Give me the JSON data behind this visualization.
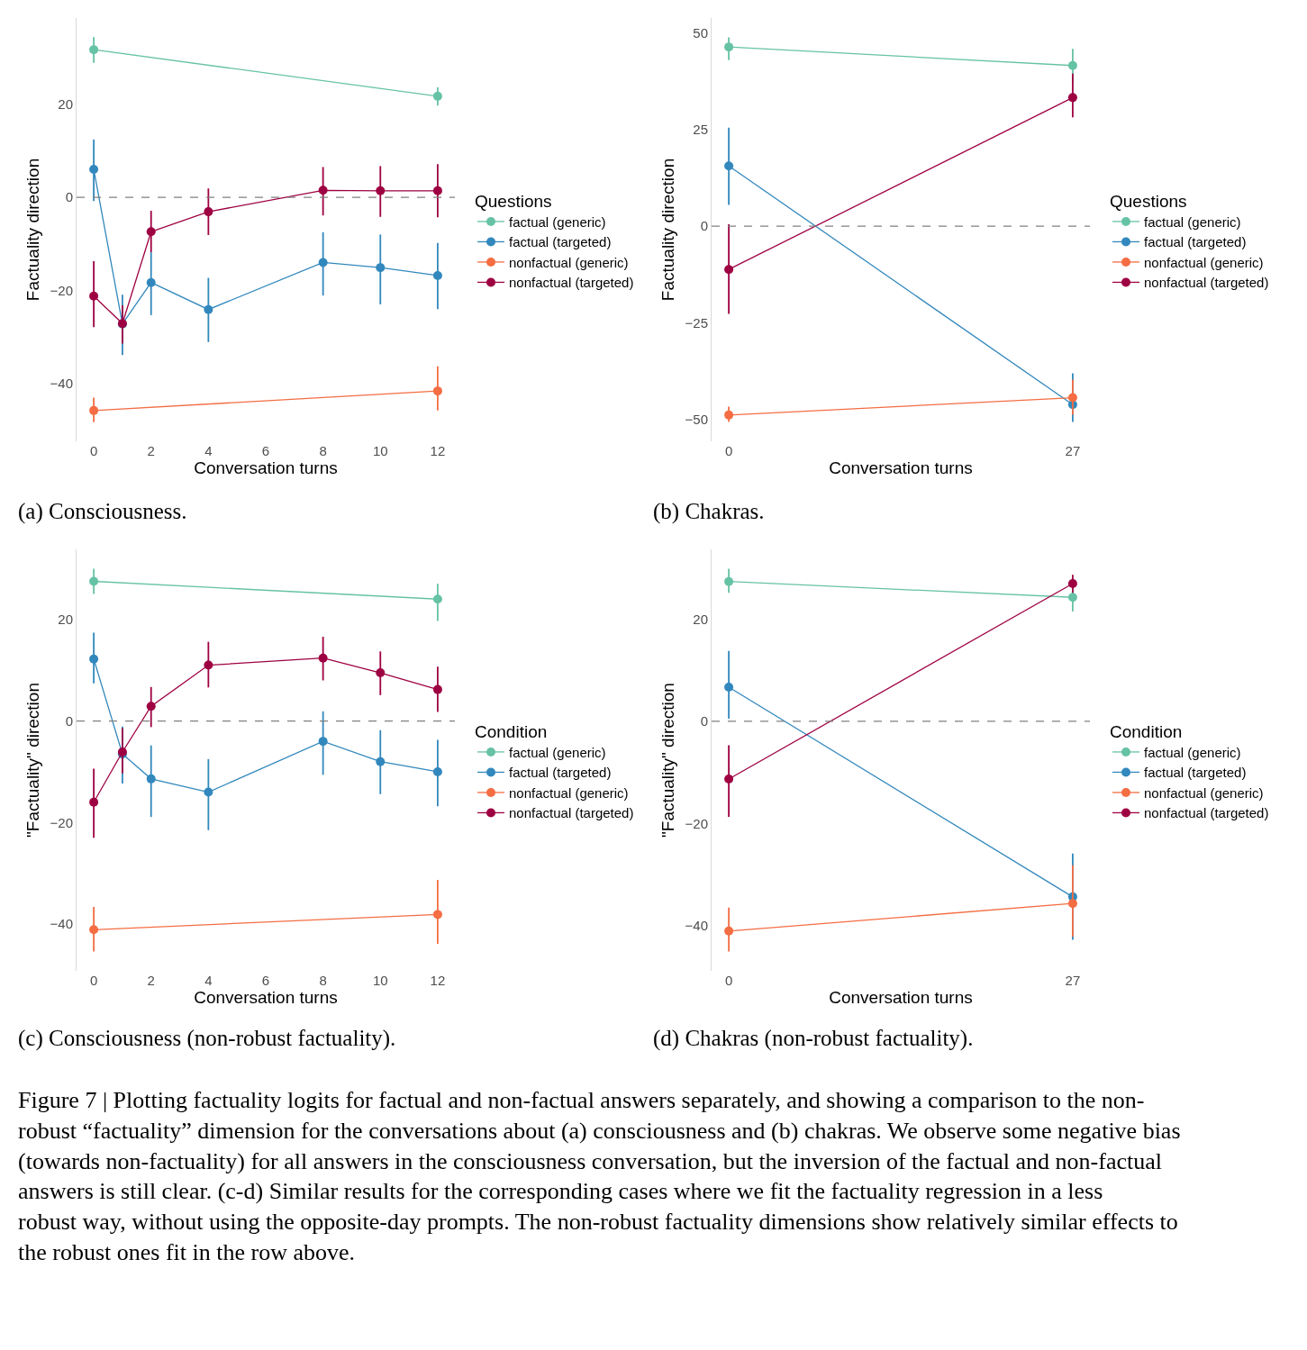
{
  "chart_data": [
    {
      "type": "line",
      "title": "(a) Consciousness.",
      "xlabel": "Conversation turns",
      "ylabel": "Factuality direction",
      "legend_title": "Questions",
      "legend": "right",
      "marker": "circle",
      "line_style": "solid",
      "xlim": [
        -0.6,
        12.6
      ],
      "xticks": [
        0,
        2,
        4,
        6,
        8,
        10,
        12
      ],
      "ylim": [
        -52.4,
        38.5
      ],
      "yticks": [
        -40,
        -20,
        0,
        20
      ],
      "ref_lines": [
        {
          "axis": "y",
          "value": 0,
          "label": null,
          "color": "#808080",
          "line_style": "dashed"
        }
      ],
      "series": [
        {
          "name": "factual (generic)",
          "color": "#66c2a5",
          "x": [
            0,
            12
          ],
          "values": [
            31.7,
            21.7
          ],
          "errors": [
            [
              28.9,
              34.4
            ],
            [
              19.7,
              23.6
            ]
          ]
        },
        {
          "name": "factual (targeted)",
          "color": "#3288bd",
          "x": [
            0,
            1,
            2,
            4,
            8,
            10,
            12
          ],
          "values": [
            6.0,
            -27.2,
            -18.3,
            -24.1,
            -14.0,
            -15.1,
            -16.8
          ],
          "errors": [
            [
              -0.8,
              12.4
            ],
            [
              -33.9,
              -20.9
            ],
            [
              -25.3,
              -11.8
            ],
            [
              -31.1,
              -17.3
            ],
            [
              -21.1,
              -7.5
            ],
            [
              -23.0,
              -8.0
            ],
            [
              -24.0,
              -9.8
            ]
          ]
        },
        {
          "name": "nonfactual (generic)",
          "color": "#f46d43",
          "x": [
            0,
            12
          ],
          "values": [
            -45.8,
            -41.6
          ],
          "errors": [
            [
              -48.3,
              -43.0
            ],
            [
              -45.8,
              -36.3
            ]
          ]
        },
        {
          "name": "nonfactual (targeted)",
          "color": "#9e0142",
          "x": [
            0,
            1,
            2,
            4,
            8,
            10,
            12
          ],
          "values": [
            -21.2,
            -27.1,
            -7.4,
            -3.1,
            1.5,
            1.4,
            1.4
          ],
          "errors": [
            [
              -27.9,
              -13.7
            ],
            [
              -31.4,
              -23.2
            ],
            [
              -11.8,
              -2.9
            ],
            [
              -8.1,
              1.9
            ],
            [
              -3.9,
              6.5
            ],
            [
              -4.2,
              6.7
            ],
            [
              -4.3,
              7.1
            ]
          ]
        }
      ]
    },
    {
      "type": "line",
      "title": "(b) Chakras.",
      "xlabel": "Conversation turns",
      "ylabel": "Factuality direction",
      "legend_title": "Questions",
      "legend": "right",
      "marker": "circle",
      "line_style": "solid",
      "xlim": [
        -1.35,
        28.35
      ],
      "xticks": [
        0,
        27
      ],
      "ylim": [
        -55.7,
        53.9
      ],
      "yticks": [
        -50,
        -25,
        0,
        25,
        50
      ],
      "ref_lines": [
        {
          "axis": "y",
          "value": 0,
          "label": null,
          "color": "#808080",
          "line_style": "dashed"
        }
      ],
      "series": [
        {
          "name": "factual (generic)",
          "color": "#66c2a5",
          "x": [
            0,
            27
          ],
          "values": [
            46.4,
            41.6
          ],
          "errors": [
            [
              43.0,
              48.9
            ],
            [
              37.2,
              45.9
            ]
          ]
        },
        {
          "name": "factual (targeted)",
          "color": "#3288bd",
          "x": [
            0,
            27
          ],
          "values": [
            15.6,
            -46.2
          ],
          "errors": [
            [
              5.5,
              25.5
            ],
            [
              -50.7,
              -38.1
            ]
          ]
        },
        {
          "name": "nonfactual (generic)",
          "color": "#f46d43",
          "x": [
            0,
            27
          ],
          "values": [
            -48.9,
            -44.4
          ],
          "errors": [
            [
              -50.7,
              -46.7
            ],
            [
              -48.8,
              -39.7
            ]
          ]
        },
        {
          "name": "nonfactual (targeted)",
          "color": "#9e0142",
          "x": [
            0,
            27
          ],
          "values": [
            -11.2,
            33.3
          ],
          "errors": [
            [
              -22.7,
              0.5
            ],
            [
              28.2,
              39.5
            ]
          ]
        }
      ]
    },
    {
      "type": "line",
      "title": "(c) Consciousness (non-robust factuality).",
      "xlabel": "Conversation turns",
      "ylabel": "\"Factuality\" direction",
      "legend_title": "Condition",
      "legend": "right",
      "marker": "circle",
      "line_style": "solid",
      "xlim": [
        -0.6,
        12.6
      ],
      "xticks": [
        0,
        2,
        4,
        6,
        8,
        10,
        12
      ],
      "ylim": [
        -49.2,
        33.8
      ],
      "yticks": [
        -40,
        -20,
        0,
        20
      ],
      "ref_lines": [
        {
          "axis": "y",
          "value": 0,
          "label": null,
          "color": "#808080",
          "line_style": "dashed"
        }
      ],
      "series": [
        {
          "name": "factual (generic)",
          "color": "#66c2a5",
          "x": [
            0,
            12
          ],
          "values": [
            27.5,
            24.0
          ],
          "errors": [
            [
              25.0,
              30.0
            ],
            [
              19.7,
              27.0
            ]
          ]
        },
        {
          "name": "factual (targeted)",
          "color": "#3288bd",
          "x": [
            0,
            1,
            2,
            4,
            8,
            10,
            12
          ],
          "values": [
            12.2,
            -6.5,
            -11.4,
            -14.0,
            -4.0,
            -8.0,
            -10.0
          ],
          "errors": [
            [
              7.4,
              17.4
            ],
            [
              -12.3,
              -1.1
            ],
            [
              -18.9,
              -4.8
            ],
            [
              -21.5,
              -7.5
            ],
            [
              -10.6,
              1.9
            ],
            [
              -14.4,
              -1.8
            ],
            [
              -16.8,
              -3.7
            ]
          ]
        },
        {
          "name": "nonfactual (generic)",
          "color": "#f46d43",
          "x": [
            0,
            12
          ],
          "values": [
            -41.1,
            -38.1
          ],
          "errors": [
            [
              -45.4,
              -36.6
            ],
            [
              -43.9,
              -31.3
            ]
          ]
        },
        {
          "name": "nonfactual (targeted)",
          "color": "#9e0142",
          "x": [
            0,
            1,
            2,
            4,
            8,
            10,
            12
          ],
          "values": [
            -16.0,
            -6.1,
            2.9,
            11.0,
            12.4,
            9.5,
            6.2
          ],
          "errors": [
            [
              -23.0,
              -9.4
            ],
            [
              -10.3,
              -1.4
            ],
            [
              -1.2,
              6.7
            ],
            [
              6.6,
              15.6
            ],
            [
              8.0,
              16.6
            ],
            [
              5.1,
              13.7
            ],
            [
              1.8,
              10.7
            ]
          ]
        }
      ]
    },
    {
      "type": "line",
      "title": "(d) Chakras (non-robust factuality).",
      "xlabel": "Conversation turns",
      "ylabel": "\"Factuality\" direction",
      "legend_title": "Condition",
      "legend": "right",
      "marker": "circle",
      "line_style": "solid",
      "xlim": [
        -1.35,
        28.35
      ],
      "xticks": [
        0,
        27
      ],
      "ylim": [
        -48.9,
        33.7
      ],
      "yticks": [
        -40,
        -20,
        0,
        20
      ],
      "ref_lines": [
        {
          "axis": "y",
          "value": 0,
          "label": null,
          "color": "#808080",
          "line_style": "dashed"
        }
      ],
      "series": [
        {
          "name": "factual (generic)",
          "color": "#66c2a5",
          "x": [
            0,
            27
          ],
          "values": [
            27.4,
            24.3
          ],
          "errors": [
            [
              25.2,
              29.9
            ],
            [
              21.5,
              26.9
            ]
          ]
        },
        {
          "name": "factual (targeted)",
          "color": "#3288bd",
          "x": [
            0,
            27
          ],
          "values": [
            6.7,
            -34.4
          ],
          "errors": [
            [
              0.5,
              13.8
            ],
            [
              -42.8,
              -25.9
            ]
          ]
        },
        {
          "name": "nonfactual (generic)",
          "color": "#f46d43",
          "x": [
            0,
            27
          ],
          "values": [
            -41.1,
            -35.7
          ],
          "errors": [
            [
              -45.1,
              -36.5
            ],
            [
              -42.2,
              -28.2
            ]
          ]
        },
        {
          "name": "nonfactual (targeted)",
          "color": "#9e0142",
          "x": [
            0,
            27
          ],
          "values": [
            -11.3,
            27.0
          ],
          "errors": [
            [
              -18.7,
              -4.7
            ],
            [
              25.2,
              28.7
            ]
          ]
        }
      ]
    },
    {
      "type": "other",
      "annotations": [
        "Figure 7 | Plotting factuality logits for factual and non-factual answers separately, and showing a comparison to the non-robust “factuality” dimension for the conversations about (a) consciousness and (b) chakras. We observe some negative bias (towards non-factuality) for all answers in the consciousness conversation, but the inversion of the factual and non-factual answers is still clear. (c-d) Similar results for the corresponding cases where we fit the factuality regression in a less robust way, without using the opposite-day prompts. The non-robust factuality dimensions show relatively similar effects to the robust ones fit in the row above."
      ]
    }
  ]
}
